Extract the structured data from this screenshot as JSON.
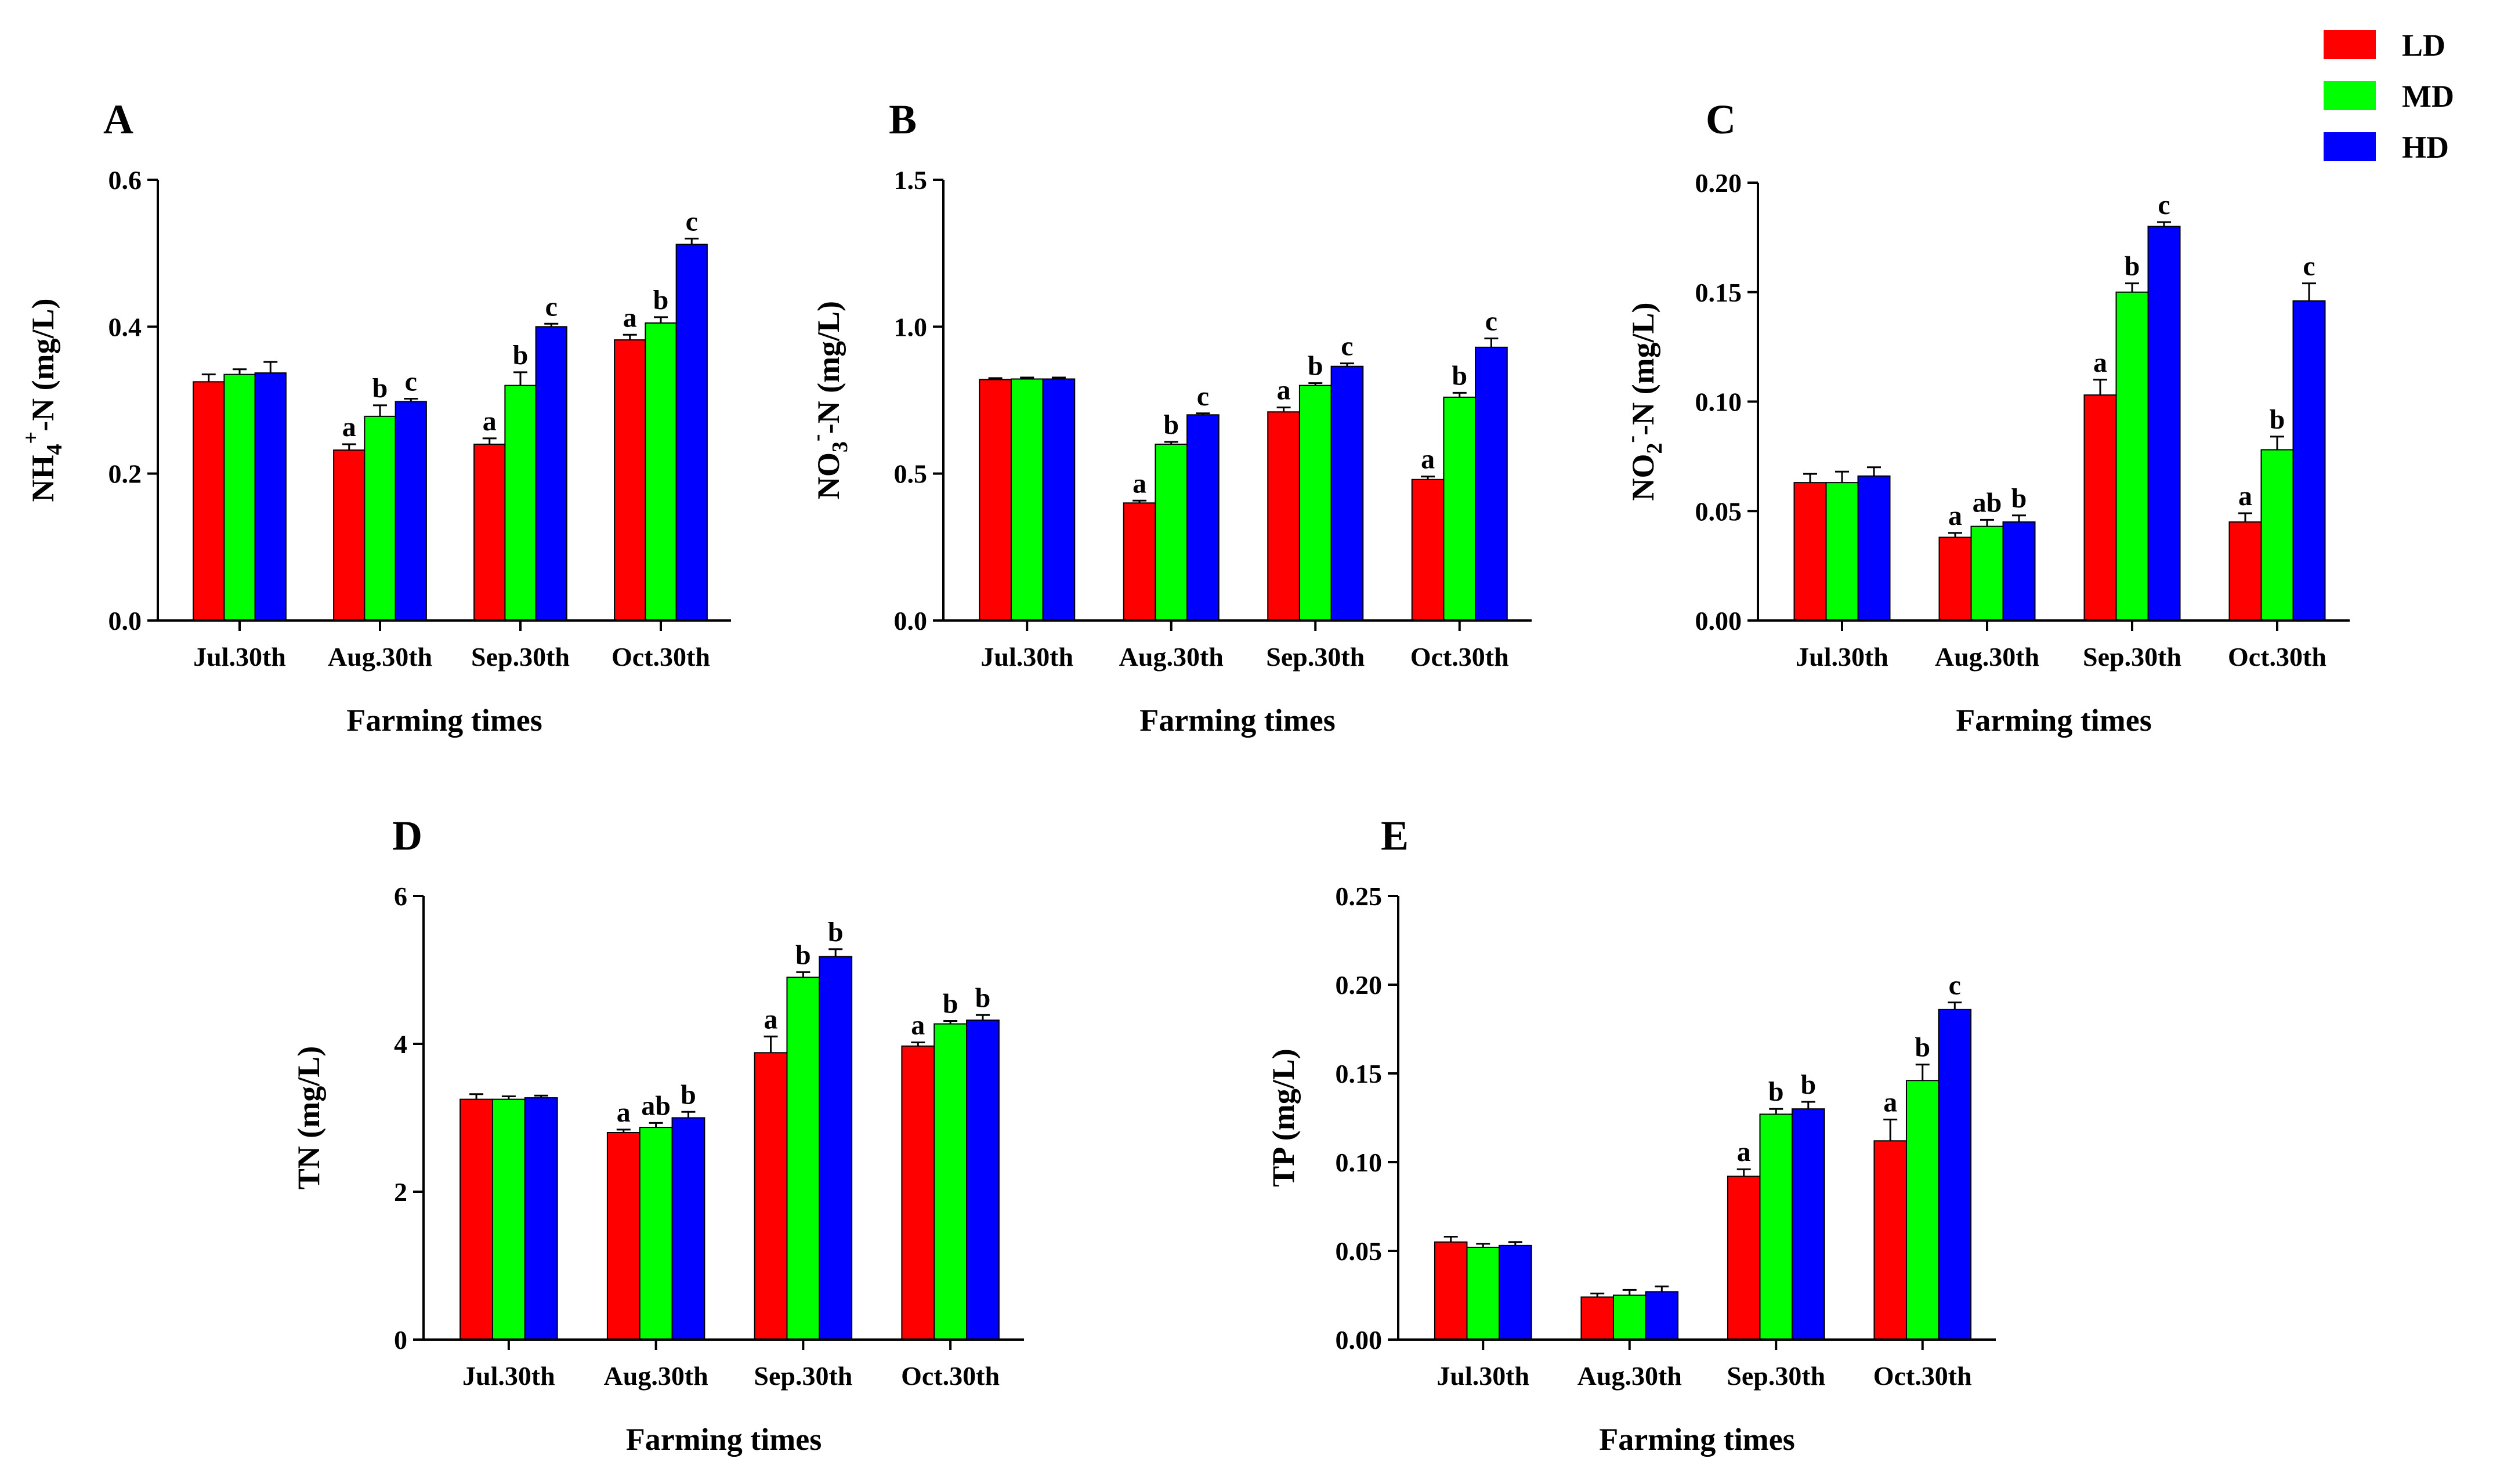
{
  "legend": [
    {
      "label": "LD",
      "color": "#ff0000"
    },
    {
      "label": "MD",
      "color": "#00ff00"
    },
    {
      "label": "HD",
      "color": "#0000ff"
    }
  ],
  "chart_data": [
    {
      "panel": "A",
      "type": "bar",
      "ylabel": "NH4+-N (mg/L)",
      "ylabel_parts": {
        "base": "NH",
        "sub": "4",
        "sup": "+",
        "rest": "-N (mg/L)"
      },
      "xlabel": "Farming times",
      "categories": [
        "Jul.30th",
        "Aug.30th",
        "Sep.30th",
        "Oct.30th"
      ],
      "ylim": [
        0,
        0.6
      ],
      "yticks": [
        "0.0",
        "0.2",
        "0.4",
        "0.6"
      ],
      "series": [
        {
          "name": "LD",
          "values": [
            0.325,
            0.232,
            0.24,
            0.382
          ],
          "errors": [
            0.01,
            0.008,
            0.008,
            0.007
          ],
          "labels": [
            "",
            "a",
            "a",
            "a"
          ]
        },
        {
          "name": "MD",
          "values": [
            0.335,
            0.278,
            0.32,
            0.405
          ],
          "errors": [
            0.007,
            0.015,
            0.018,
            0.008
          ],
          "labels": [
            "",
            "b",
            "b",
            "b"
          ]
        },
        {
          "name": "HD",
          "values": [
            0.337,
            0.298,
            0.4,
            0.512
          ],
          "errors": [
            0.015,
            0.004,
            0.004,
            0.008
          ],
          "labels": [
            "",
            "c",
            "c",
            "c"
          ]
        }
      ]
    },
    {
      "panel": "B",
      "type": "bar",
      "ylabel": "NO3--N (mg/L)",
      "ylabel_parts": {
        "base": "NO",
        "sub": "3",
        "sup": "-",
        "rest": "-N (mg/L)"
      },
      "xlabel": "Farming times",
      "categories": [
        "Jul.30th",
        "Aug.30th",
        "Sep.30th",
        "Oct.30th"
      ],
      "ylim": [
        0,
        1.5
      ],
      "yticks": [
        "0.0",
        "0.5",
        "1.0",
        "1.5"
      ],
      "series": [
        {
          "name": "LD",
          "values": [
            0.82,
            0.4,
            0.71,
            0.48
          ],
          "errors": [
            0.005,
            0.008,
            0.015,
            0.01
          ],
          "labels": [
            "",
            "a",
            "a",
            "a"
          ]
        },
        {
          "name": "MD",
          "values": [
            0.822,
            0.6,
            0.8,
            0.76
          ],
          "errors": [
            0.005,
            0.008,
            0.008,
            0.015
          ],
          "labels": [
            "",
            "b",
            "b",
            "b"
          ]
        },
        {
          "name": "HD",
          "values": [
            0.822,
            0.7,
            0.865,
            0.93
          ],
          "errors": [
            0.005,
            0.005,
            0.01,
            0.03
          ],
          "labels": [
            "",
            "c",
            "c",
            "c"
          ]
        }
      ]
    },
    {
      "panel": "C",
      "type": "bar",
      "ylabel": "NO2--N (mg/L)",
      "ylabel_parts": {
        "base": "NO",
        "sub": "2",
        "sup": "-",
        "rest": "-N (mg/L)"
      },
      "xlabel": "Farming times",
      "categories": [
        "Jul.30th",
        "Aug.30th",
        "Sep.30th",
        "Oct.30th"
      ],
      "ylim": [
        0,
        0.2
      ],
      "yticks": [
        "0.00",
        "0.05",
        "0.10",
        "0.15",
        "0.20"
      ],
      "series": [
        {
          "name": "LD",
          "values": [
            0.063,
            0.038,
            0.103,
            0.045
          ],
          "errors": [
            0.004,
            0.002,
            0.007,
            0.004
          ],
          "labels": [
            "",
            "a",
            "a",
            "a"
          ]
        },
        {
          "name": "MD",
          "values": [
            0.063,
            0.043,
            0.15,
            0.078
          ],
          "errors": [
            0.005,
            0.003,
            0.004,
            0.006
          ],
          "labels": [
            "",
            "ab",
            "b",
            "b"
          ]
        },
        {
          "name": "HD",
          "values": [
            0.066,
            0.045,
            0.18,
            0.146
          ],
          "errors": [
            0.004,
            0.003,
            0.002,
            0.008
          ],
          "labels": [
            "",
            "b",
            "c",
            "c"
          ]
        }
      ]
    },
    {
      "panel": "D",
      "type": "bar",
      "ylabel": "TN (mg/L)",
      "xlabel": "Farming times",
      "categories": [
        "Jul.30th",
        "Aug.30th",
        "Sep.30th",
        "Oct.30th"
      ],
      "ylim": [
        0,
        6
      ],
      "yticks": [
        "0",
        "2",
        "4",
        "6"
      ],
      "series": [
        {
          "name": "LD",
          "values": [
            3.25,
            2.8,
            3.88,
            3.97
          ],
          "errors": [
            0.07,
            0.04,
            0.22,
            0.05
          ],
          "labels": [
            "",
            "a",
            "a",
            "a"
          ]
        },
        {
          "name": "MD",
          "values": [
            3.25,
            2.87,
            4.9,
            4.27
          ],
          "errors": [
            0.04,
            0.06,
            0.07,
            0.04
          ],
          "labels": [
            "",
            "ab",
            "b",
            "b"
          ]
        },
        {
          "name": "HD",
          "values": [
            3.27,
            3.0,
            5.18,
            4.32
          ],
          "errors": [
            0.03,
            0.08,
            0.1,
            0.07
          ],
          "labels": [
            "",
            "b",
            "b",
            "b"
          ]
        }
      ]
    },
    {
      "panel": "E",
      "type": "bar",
      "ylabel": "TP (mg/L)",
      "xlabel": "Farming times",
      "categories": [
        "Jul.30th",
        "Aug.30th",
        "Sep.30th",
        "Oct.30th"
      ],
      "ylim": [
        0,
        0.25
      ],
      "yticks": [
        "0.00",
        "0.05",
        "0.10",
        "0.15",
        "0.20",
        "0.25"
      ],
      "series": [
        {
          "name": "LD",
          "values": [
            0.055,
            0.024,
            0.092,
            0.112
          ],
          "errors": [
            0.003,
            0.002,
            0.004,
            0.012
          ],
          "labels": [
            "",
            "",
            "a",
            "a"
          ]
        },
        {
          "name": "MD",
          "values": [
            0.052,
            0.025,
            0.127,
            0.146
          ],
          "errors": [
            0.002,
            0.003,
            0.003,
            0.009
          ],
          "labels": [
            "",
            "",
            "b",
            "b"
          ]
        },
        {
          "name": "HD",
          "values": [
            0.053,
            0.027,
            0.13,
            0.186
          ],
          "errors": [
            0.002,
            0.003,
            0.004,
            0.004
          ],
          "labels": [
            "",
            "",
            "b",
            "c"
          ]
        }
      ]
    }
  ]
}
